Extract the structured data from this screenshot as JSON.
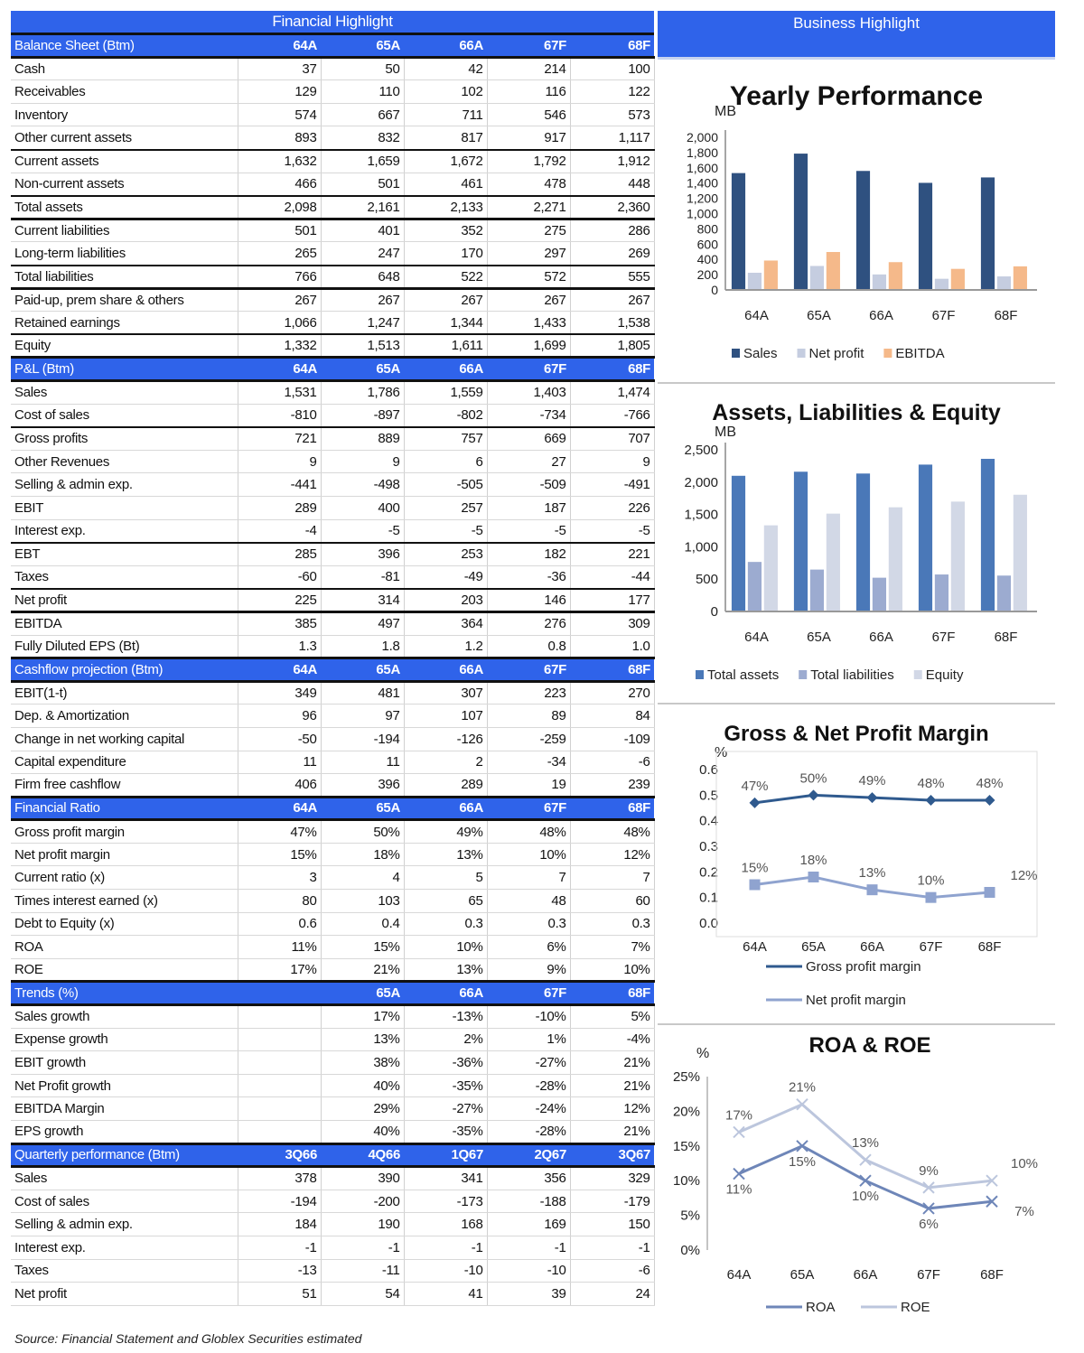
{
  "financial_highlight": {
    "title": "Financial Highlight",
    "sections": [
      {
        "header": "Balance Sheet (Btm)",
        "cols": [
          "64A",
          "65A",
          "66A",
          "67F",
          "68F"
        ],
        "rows": [
          {
            "label": "Cash",
            "values": [
              "37",
              "50",
              "42",
              "214",
              "100"
            ]
          },
          {
            "label": "Receivables",
            "values": [
              "129",
              "110",
              "102",
              "116",
              "122"
            ]
          },
          {
            "label": "Inventory",
            "values": [
              "574",
              "667",
              "711",
              "546",
              "573"
            ]
          },
          {
            "label": "Other current assets",
            "values": [
              "893",
              "832",
              "817",
              "917",
              "1,117"
            ]
          },
          {
            "label": "Current assets",
            "values": [
              "1,632",
              "1,659",
              "1,672",
              "1,792",
              "1,912"
            ]
          },
          {
            "label": "Non-current assets",
            "values": [
              "466",
              "501",
              "461",
              "478",
              "448"
            ]
          },
          {
            "label": "Total assets",
            "values": [
              "2,098",
              "2,161",
              "2,133",
              "2,271",
              "2,360"
            ]
          },
          {
            "label": "Current liabilities",
            "values": [
              "501",
              "401",
              "352",
              "275",
              "286"
            ]
          },
          {
            "label": "Long-term liabilities",
            "values": [
              "265",
              "247",
              "170",
              "297",
              "269"
            ]
          },
          {
            "label": "Total liabilities",
            "values": [
              "766",
              "648",
              "522",
              "572",
              "555"
            ]
          },
          {
            "label": "Paid-up, prem share & others",
            "values": [
              "267",
              "267",
              "267",
              "267",
              "267"
            ]
          },
          {
            "label": "Retained earnings",
            "values": [
              "1,066",
              "1,247",
              "1,344",
              "1,433",
              "1,538"
            ]
          },
          {
            "label": "Equity",
            "values": [
              "1,332",
              "1,513",
              "1,611",
              "1,699",
              "1,805"
            ]
          }
        ]
      },
      {
        "header": "P&L (Btm)",
        "cols": [
          "64A",
          "65A",
          "66A",
          "67F",
          "68F"
        ],
        "rows": [
          {
            "label": "Sales",
            "values": [
              "1,531",
              "1,786",
              "1,559",
              "1,403",
              "1,474"
            ]
          },
          {
            "label": "Cost of sales",
            "values": [
              "-810",
              "-897",
              "-802",
              "-734",
              "-766"
            ]
          },
          {
            "label": "Gross profits",
            "values": [
              "721",
              "889",
              "757",
              "669",
              "707"
            ]
          },
          {
            "label": "Other Revenues",
            "values": [
              "9",
              "9",
              "6",
              "27",
              "9"
            ]
          },
          {
            "label": "Selling & admin exp.",
            "values": [
              "-441",
              "-498",
              "-505",
              "-509",
              "-491"
            ]
          },
          {
            "label": "EBIT",
            "values": [
              "289",
              "400",
              "257",
              "187",
              "226"
            ]
          },
          {
            "label": "Interest exp.",
            "values": [
              "-4",
              "-5",
              "-5",
              "-5",
              "-5"
            ]
          },
          {
            "label": "EBT",
            "values": [
              "285",
              "396",
              "253",
              "182",
              "221"
            ]
          },
          {
            "label": "Taxes",
            "values": [
              "-60",
              "-81",
              "-49",
              "-36",
              "-44"
            ]
          },
          {
            "label": "Net profit",
            "values": [
              "225",
              "314",
              "203",
              "146",
              "177"
            ]
          },
          {
            "label": "EBITDA",
            "values": [
              "385",
              "497",
              "364",
              "276",
              "309"
            ]
          },
          {
            "label": "Fully Diluted EPS (Bt)",
            "values": [
              "1.3",
              "1.8",
              "1.2",
              "0.8",
              "1.0"
            ]
          }
        ]
      },
      {
        "header": "Cashflow projection (Btm)",
        "cols": [
          "64A",
          "65A",
          "66A",
          "67F",
          "68F"
        ],
        "rows": [
          {
            "label": "EBIT(1-t)",
            "values": [
              "349",
              "481",
              "307",
              "223",
              "270"
            ]
          },
          {
            "label": "Dep. & Amortization",
            "values": [
              "96",
              "97",
              "107",
              "89",
              "84"
            ]
          },
          {
            "label": "Change in net working capital",
            "values": [
              "-50",
              "-194",
              "-126",
              "-259",
              "-109"
            ]
          },
          {
            "label": "Capital expenditure",
            "values": [
              "11",
              "11",
              "2",
              "-34",
              "-6"
            ]
          },
          {
            "label": "Firm free cashflow",
            "values": [
              "406",
              "396",
              "289",
              "19",
              "239"
            ]
          }
        ]
      },
      {
        "header": "Financial Ratio",
        "cols": [
          "64A",
          "65A",
          "66A",
          "67F",
          "68F"
        ],
        "rows": [
          {
            "label": "Gross profit margin",
            "values": [
              "47%",
              "50%",
              "49%",
              "48%",
              "48%"
            ]
          },
          {
            "label": "Net profit margin",
            "values": [
              "15%",
              "18%",
              "13%",
              "10%",
              "12%"
            ]
          },
          {
            "label": "Current ratio (x)",
            "values": [
              "3",
              "4",
              "5",
              "7",
              "7"
            ]
          },
          {
            "label": "Times interest earned (x)",
            "values": [
              "80",
              "103",
              "65",
              "48",
              "60"
            ]
          },
          {
            "label": "Debt to Equity (x)",
            "values": [
              "0.6",
              "0.4",
              "0.3",
              "0.3",
              "0.3"
            ]
          },
          {
            "label": "ROA",
            "values": [
              "11%",
              "15%",
              "10%",
              "6%",
              "7%"
            ]
          },
          {
            "label": "ROE",
            "values": [
              "17%",
              "21%",
              "13%",
              "9%",
              "10%"
            ]
          }
        ]
      },
      {
        "header": "Trends (%)",
        "cols": [
          "",
          "65A",
          "66A",
          "67F",
          "68F"
        ],
        "rows": [
          {
            "label": "Sales growth",
            "values": [
              "",
              "17%",
              "-13%",
              "-10%",
              "5%"
            ]
          },
          {
            "label": "Expense growth",
            "values": [
              "",
              "13%",
              "2%",
              "1%",
              "-4%"
            ]
          },
          {
            "label": "EBIT growth",
            "values": [
              "",
              "38%",
              "-36%",
              "-27%",
              "21%"
            ]
          },
          {
            "label": "Net Profit growth",
            "values": [
              "",
              "40%",
              "-35%",
              "-28%",
              "21%"
            ]
          },
          {
            "label": "EBITDA Margin",
            "values": [
              "",
              "29%",
              "-27%",
              "-24%",
              "12%"
            ]
          },
          {
            "label": "EPS growth",
            "values": [
              "",
              "40%",
              "-35%",
              "-28%",
              "21%"
            ]
          }
        ]
      },
      {
        "header": "Quarterly performance (Btm)",
        "cols": [
          "3Q66",
          "4Q66",
          "1Q67",
          "2Q67",
          "3Q67"
        ],
        "rows": [
          {
            "label": "Sales",
            "values": [
              "378",
              "390",
              "341",
              "356",
              "329"
            ]
          },
          {
            "label": "Cost of sales",
            "values": [
              "-194",
              "-200",
              "-173",
              "-188",
              "-179"
            ]
          },
          {
            "label": "Selling & admin exp.",
            "values": [
              "184",
              "190",
              "168",
              "169",
              "150"
            ]
          },
          {
            "label": "Interest exp.",
            "values": [
              "-1",
              "-1",
              "-1",
              "-1",
              "-1"
            ]
          },
          {
            "label": "Taxes",
            "values": [
              "-13",
              "-11",
              "-10",
              "-10",
              "-6"
            ]
          },
          {
            "label": "Net profit",
            "values": [
              "51",
              "54",
              "41",
              "39",
              "24"
            ]
          }
        ]
      }
    ],
    "source": "Source: Financial Statement and Globlex Securities estimated"
  },
  "business_highlight": {
    "title": "Business Highlight"
  },
  "chart_data": [
    {
      "type": "bar",
      "title": "Yearly Performance",
      "ylabel": "MB",
      "categories": [
        "64A",
        "65A",
        "66A",
        "67F",
        "68F"
      ],
      "ylim": [
        0,
        2000
      ],
      "ystep": 200,
      "yticks": [
        "0",
        "200",
        "400",
        "600",
        "800",
        "1,000",
        "1,200",
        "1,400",
        "1,600",
        "1,800",
        "2,000"
      ],
      "series": [
        {
          "name": "Sales",
          "values": [
            1531,
            1786,
            1559,
            1403,
            1474
          ],
          "color": "#2f5180"
        },
        {
          "name": "Net profit",
          "values": [
            225,
            314,
            203,
            146,
            177
          ],
          "color": "#c5cde0"
        },
        {
          "name": "EBITDA",
          "values": [
            385,
            497,
            364,
            276,
            309
          ],
          "color": "#f5b98a"
        }
      ],
      "legend": "bottom"
    },
    {
      "type": "bar",
      "title": "Assets, Liabilities & Equity",
      "ylabel": "MB",
      "categories": [
        "64A",
        "65A",
        "66A",
        "67F",
        "68F"
      ],
      "ylim": [
        0,
        2500
      ],
      "ystep": 500,
      "yticks": [
        "0",
        "500",
        "1,000",
        "1,500",
        "2,000",
        "2,500"
      ],
      "series": [
        {
          "name": "Total assets",
          "values": [
            2098,
            2161,
            2133,
            2271,
            2360
          ],
          "color": "#4a78b8"
        },
        {
          "name": "Total liabilities",
          "values": [
            766,
            648,
            522,
            572,
            555
          ],
          "color": "#9cabd0"
        },
        {
          "name": "Equity",
          "values": [
            1332,
            1513,
            1611,
            1699,
            1805
          ],
          "color": "#d2d8e6"
        }
      ],
      "legend": "bottom"
    },
    {
      "type": "line",
      "title": "Gross & Net Profit Margin",
      "ylabel": "%",
      "categories": [
        "64A",
        "65A",
        "66A",
        "67F",
        "68F"
      ],
      "ylim": [
        0,
        0.6
      ],
      "ystep": 0.1,
      "yticks": [
        "0.0",
        "0.1",
        "0.2",
        "0.3",
        "0.4",
        "0.5",
        "0.6"
      ],
      "series": [
        {
          "name": "Gross profit margin",
          "values": [
            0.47,
            0.5,
            0.49,
            0.48,
            0.48
          ],
          "labels": [
            "47%",
            "50%",
            "49%",
            "48%",
            "48%"
          ],
          "color": "#2f5a8e",
          "marker": "diamond"
        },
        {
          "name": "Net profit margin",
          "values": [
            0.15,
            0.18,
            0.13,
            0.1,
            0.12
          ],
          "labels": [
            "15%",
            "18%",
            "13%",
            "10%",
            "12%"
          ],
          "color": "#8fa3cf",
          "marker": "square"
        }
      ],
      "legend": "bottom"
    },
    {
      "type": "line",
      "title": "ROA & ROE",
      "ylabel": "%",
      "categories": [
        "64A",
        "65A",
        "66A",
        "67F",
        "68F"
      ],
      "ylim": [
        0,
        25
      ],
      "ystep": 5,
      "yticks": [
        "0%",
        "5%",
        "10%",
        "15%",
        "20%",
        "25%"
      ],
      "series": [
        {
          "name": "ROA",
          "values": [
            11,
            15,
            10,
            6,
            7
          ],
          "labels": [
            "11%",
            "15%",
            "10%",
            "6%",
            "7%"
          ],
          "color": "#6e86b8",
          "marker": "x"
        },
        {
          "name": "ROE",
          "values": [
            17,
            21,
            13,
            9,
            10
          ],
          "labels": [
            "17%",
            "21%",
            "13%",
            "9%",
            "10%"
          ],
          "color": "#bcc6dd",
          "marker": "x"
        }
      ],
      "legend": "bottom"
    }
  ]
}
